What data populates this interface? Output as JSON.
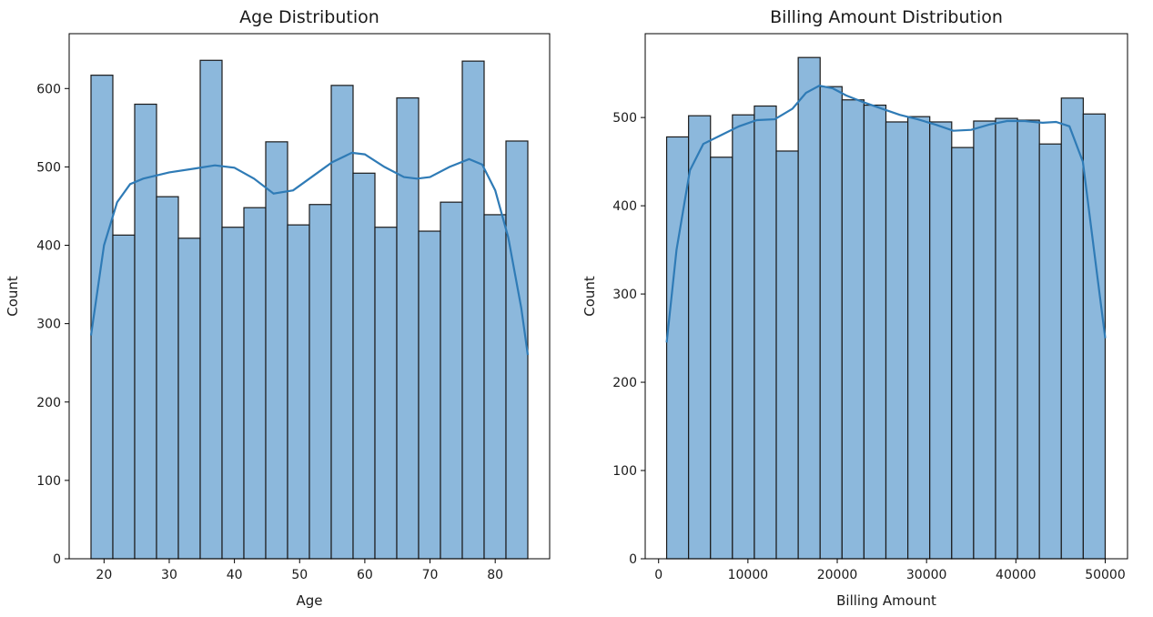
{
  "chart_data": [
    {
      "type": "bar",
      "title": "Age Distribution",
      "xlabel": "Age",
      "ylabel": "Count",
      "xlim": [
        14.65,
        88.35
      ],
      "ylim": [
        0,
        670
      ],
      "xticks": [
        20,
        30,
        40,
        50,
        60,
        70,
        80
      ],
      "yticks": [
        0,
        100,
        200,
        300,
        400,
        500,
        600
      ],
      "bin_edges": [
        18,
        21.35,
        24.7,
        28.05,
        31.4,
        34.75,
        38.1,
        41.45,
        44.8,
        48.15,
        51.5,
        54.85,
        58.2,
        61.55,
        64.9,
        68.25,
        71.6,
        74.95,
        78.3,
        81.65,
        85
      ],
      "values": [
        617,
        413,
        580,
        462,
        409,
        636,
        423,
        448,
        532,
        426,
        452,
        604,
        492,
        423,
        588,
        418,
        455,
        635,
        439,
        533
      ],
      "kde": {
        "x": [
          18,
          20,
          22,
          24,
          26,
          30,
          34,
          37,
          40,
          43,
          46,
          49,
          52,
          55,
          58,
          60,
          63,
          66,
          68,
          70,
          73,
          76,
          78,
          80,
          82,
          84,
          85
        ],
        "y": [
          285,
          400,
          455,
          478,
          485,
          493,
          498,
          502,
          499,
          485,
          466,
          470,
          488,
          506,
          518,
          516,
          500,
          487,
          485,
          487,
          500,
          510,
          503,
          470,
          410,
          320,
          260
        ]
      }
    },
    {
      "type": "bar",
      "title": "Billing Amount Distribution",
      "xlabel": "Billing Amount",
      "ylabel": "Count",
      "xlim": [
        -1500,
        52500
      ],
      "ylim": [
        0,
        595
      ],
      "xticks": [
        0,
        10000,
        20000,
        30000,
        40000,
        50000
      ],
      "yticks": [
        0,
        100,
        200,
        300,
        400,
        500
      ],
      "bin_edges": [
        900,
        3355,
        5810,
        8265,
        10720,
        13175,
        15630,
        18085,
        20540,
        22995,
        25450,
        27905,
        30360,
        32815,
        35270,
        37725,
        40180,
        42635,
        45090,
        47545,
        50000
      ],
      "values": [
        478,
        502,
        455,
        503,
        513,
        462,
        568,
        535,
        520,
        514,
        495,
        501,
        495,
        466,
        496,
        499,
        497,
        470,
        522,
        504
      ],
      "kde": {
        "x": [
          900,
          2000,
          3500,
          5000,
          7000,
          9000,
          11000,
          13000,
          15000,
          16500,
          18000,
          19500,
          21000,
          23000,
          25000,
          27000,
          29000,
          31000,
          33000,
          35000,
          37000,
          39000,
          41000,
          43000,
          44500,
          46000,
          47500,
          49000,
          50000
        ],
        "y": [
          245,
          350,
          440,
          470,
          480,
          490,
          497,
          498,
          510,
          528,
          536,
          533,
          525,
          517,
          510,
          503,
          498,
          492,
          485,
          486,
          492,
          496,
          496,
          494,
          495,
          490,
          450,
          330,
          250
        ]
      }
    }
  ]
}
